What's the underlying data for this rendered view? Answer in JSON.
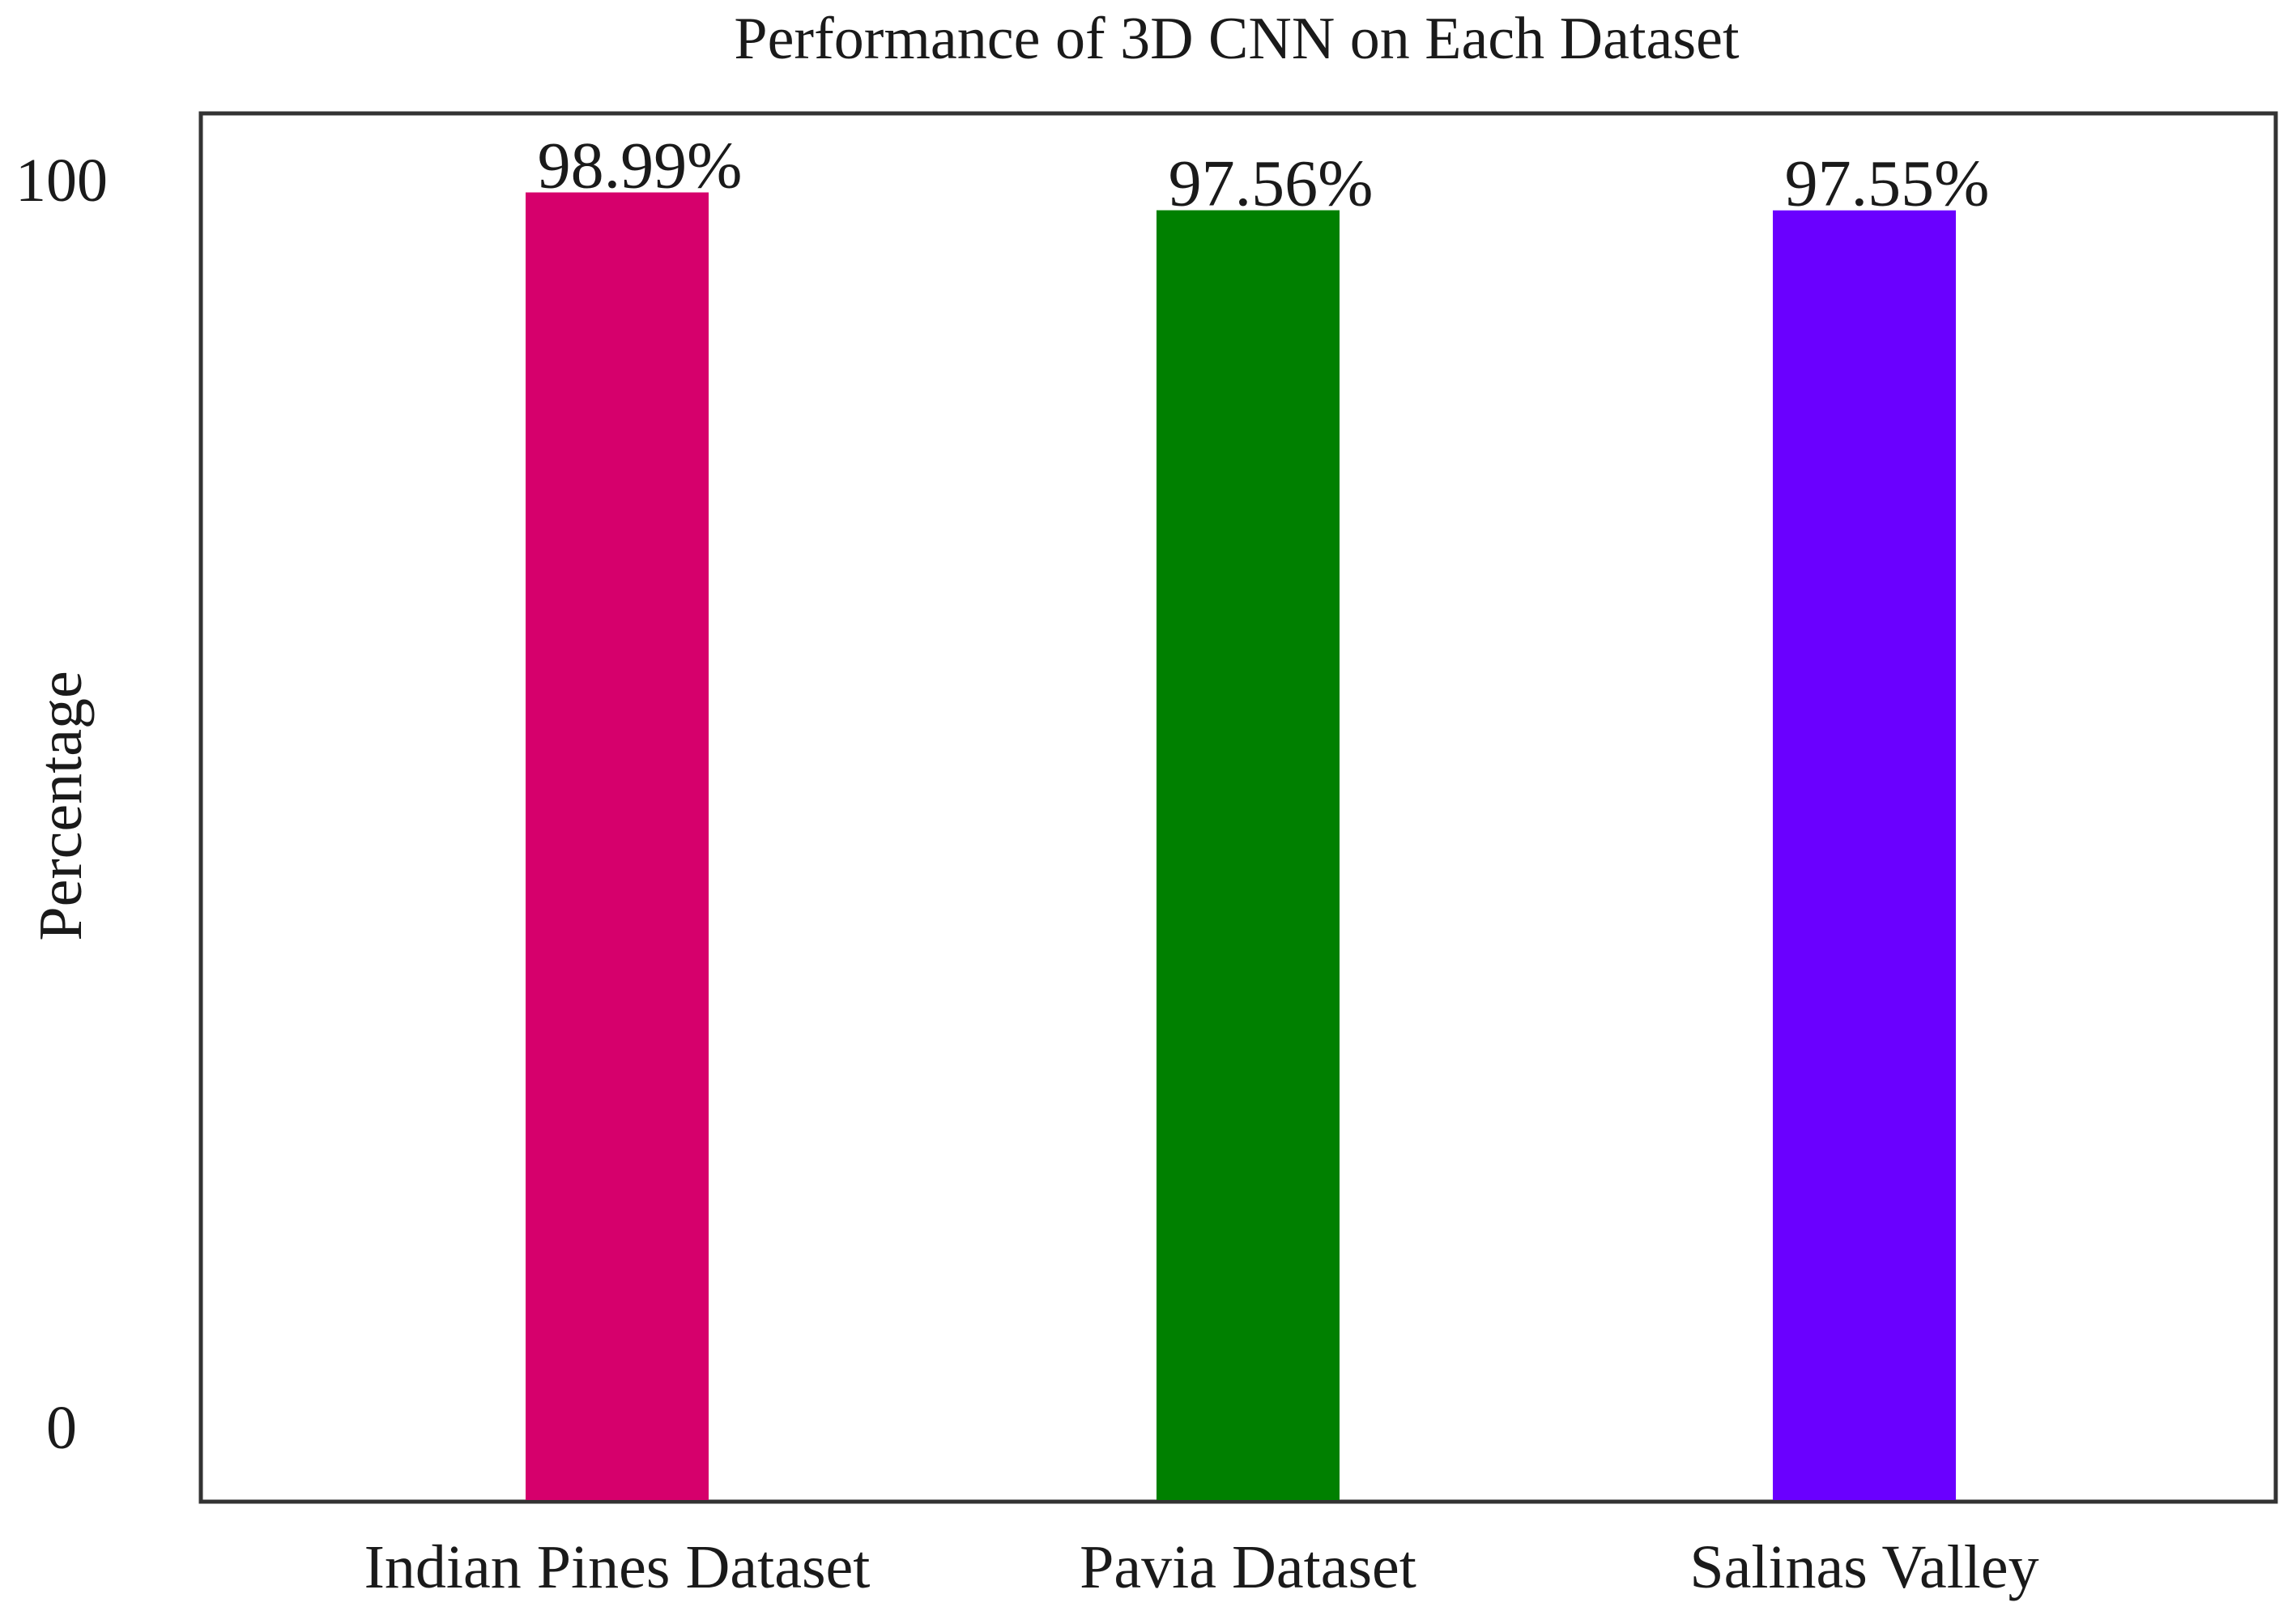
{
  "chart_data": {
    "type": "bar",
    "title": "Performance of 3D CNN on Each Dataset",
    "xlabel": "",
    "ylabel": "Percentage",
    "ylim": [
      0,
      100
    ],
    "yticks": [
      "0",
      "100"
    ],
    "categories": [
      "Indian Pines Dataset",
      "Pavia Dataset",
      "Salinas Valley"
    ],
    "values": [
      98.99,
      97.56,
      97.55
    ],
    "data_labels": [
      "98.99%",
      "97.56%",
      "97.55%"
    ],
    "colors": [
      "#d6006c",
      "#008000",
      "#6a00ff"
    ],
    "grid": false,
    "legend": "none"
  }
}
